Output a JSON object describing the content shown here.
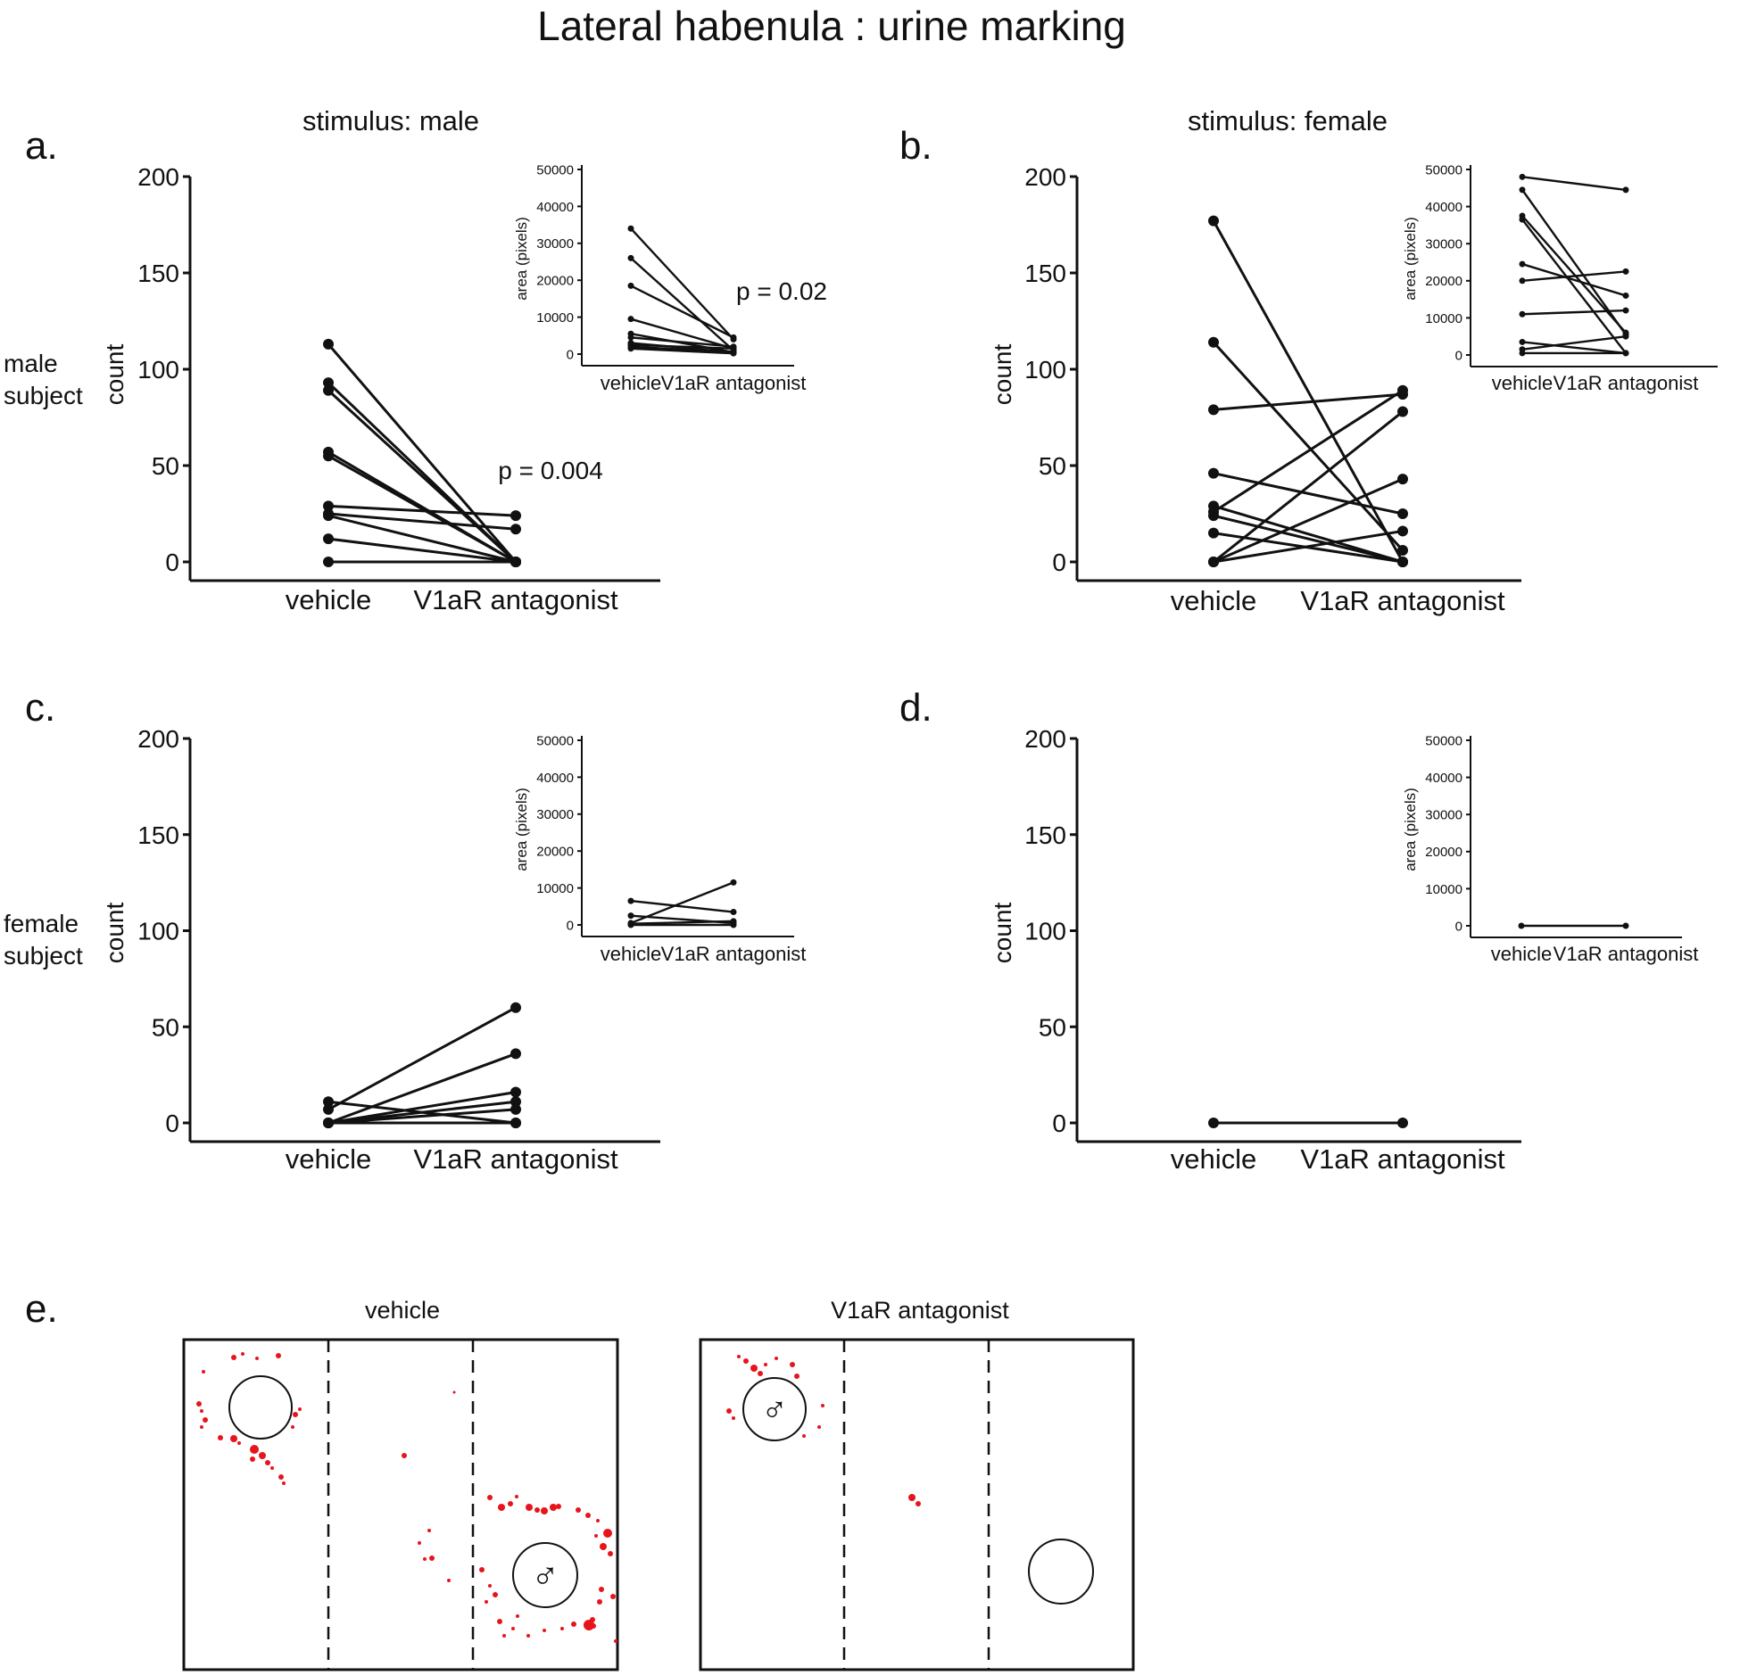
{
  "title": "Lateral habenula : urine marking",
  "column_headers": [
    "stimulus: male",
    "stimulus: female"
  ],
  "row_labels": [
    [
      "male",
      "subject"
    ],
    [
      "female",
      "subject"
    ]
  ],
  "panel_e": {
    "label": "e.",
    "arenas": [
      {
        "title": "vehicle",
        "stimulus_symbol": "♂",
        "stimulus_chamber": "right"
      },
      {
        "title": "V1aR antagonist",
        "stimulus_symbol": "♂",
        "stimulus_chamber": "left"
      }
    ],
    "colors": {
      "urine": "#e8141c"
    }
  },
  "colors": {
    "line": "#111111",
    "text": "#111111"
  },
  "chart_data": [
    {
      "panel": "a.",
      "type": "line",
      "categories": [
        "vehicle",
        "V1aR antagonist"
      ],
      "ylabel": "count",
      "ylim": [
        0,
        200
      ],
      "yticks": [
        0,
        50,
        100,
        150,
        200
      ],
      "annotation": "p = 0.004",
      "series": [
        [
          113,
          0
        ],
        [
          93,
          0
        ],
        [
          89,
          0
        ],
        [
          57,
          0
        ],
        [
          55,
          0
        ],
        [
          29,
          24
        ],
        [
          25,
          17
        ],
        [
          24,
          0
        ],
        [
          12,
          0
        ],
        [
          0,
          0
        ]
      ],
      "inset": {
        "type": "line",
        "categories": [
          "vehicle",
          "V1aR antagonist"
        ],
        "ylabel": "area (pixels)",
        "ylim": [
          0,
          50000
        ],
        "yticks": [
          0,
          10000,
          20000,
          30000,
          40000,
          50000
        ],
        "annotation": "p = 0.02",
        "series": [
          [
            34000,
            4000
          ],
          [
            26000,
            1000
          ],
          [
            18500,
            4500
          ],
          [
            9500,
            1500
          ],
          [
            5500,
            500
          ],
          [
            4500,
            2000
          ],
          [
            3000,
            500
          ],
          [
            2500,
            1500
          ],
          [
            2000,
            500
          ],
          [
            1500,
            200
          ]
        ]
      }
    },
    {
      "panel": "b.",
      "type": "line",
      "categories": [
        "vehicle",
        "V1aR antagonist"
      ],
      "ylabel": "count",
      "ylim": [
        0,
        200
      ],
      "yticks": [
        0,
        50,
        100,
        150,
        200
      ],
      "annotation": "",
      "series": [
        [
          177,
          0
        ],
        [
          114,
          6
        ],
        [
          79,
          87
        ],
        [
          46,
          25
        ],
        [
          29,
          0
        ],
        [
          26,
          89
        ],
        [
          24,
          0
        ],
        [
          15,
          0
        ],
        [
          0,
          78
        ],
        [
          0,
          43
        ],
        [
          0,
          16
        ]
      ],
      "inset": {
        "type": "line",
        "categories": [
          "vehicle",
          "V1aR antagonist"
        ],
        "ylabel": "area (pixels)",
        "ylim": [
          0,
          50000
        ],
        "yticks": [
          0,
          10000,
          20000,
          30000,
          40000,
          50000
        ],
        "annotation": "",
        "series": [
          [
            48000,
            44500
          ],
          [
            44500,
            5500
          ],
          [
            37500,
            6000
          ],
          [
            36500,
            500
          ],
          [
            24500,
            16000
          ],
          [
            20000,
            22500
          ],
          [
            11000,
            12000
          ],
          [
            3500,
            500
          ],
          [
            1500,
            5000
          ],
          [
            500,
            500
          ]
        ]
      }
    },
    {
      "panel": "c.",
      "type": "line",
      "categories": [
        "vehicle",
        "V1aR antagonist"
      ],
      "ylabel": "count",
      "ylim": [
        0,
        200
      ],
      "yticks": [
        0,
        50,
        100,
        150,
        200
      ],
      "annotation": "",
      "series": [
        [
          11,
          0
        ],
        [
          7,
          60
        ],
        [
          0,
          36
        ],
        [
          0,
          16
        ],
        [
          0,
          11
        ],
        [
          0,
          7
        ],
        [
          0,
          0
        ]
      ],
      "inset": {
        "type": "line",
        "categories": [
          "vehicle",
          "V1aR antagonist"
        ],
        "ylabel": "area (pixels)",
        "ylim": [
          0,
          50000
        ],
        "yticks": [
          0,
          10000,
          20000,
          30000,
          40000,
          50000
        ],
        "annotation": "",
        "series": [
          [
            6500,
            3500
          ],
          [
            2500,
            500
          ],
          [
            500,
            11500
          ],
          [
            300,
            1000
          ],
          [
            0,
            0
          ]
        ]
      }
    },
    {
      "panel": "d.",
      "type": "line",
      "categories": [
        "vehicle",
        "V1aR antagonist"
      ],
      "ylabel": "count",
      "ylim": [
        0,
        200
      ],
      "yticks": [
        0,
        50,
        100,
        150,
        200
      ],
      "annotation": "",
      "series": [
        [
          0,
          0
        ]
      ],
      "inset": {
        "type": "line",
        "categories": [
          "vehicle",
          "V1aR antagonist"
        ],
        "ylabel": "area (pixels)",
        "ylim": [
          0,
          50000
        ],
        "yticks": [
          0,
          10000,
          20000,
          30000,
          40000,
          50000
        ],
        "annotation": "",
        "series": [
          [
            0,
            0
          ]
        ]
      }
    }
  ]
}
